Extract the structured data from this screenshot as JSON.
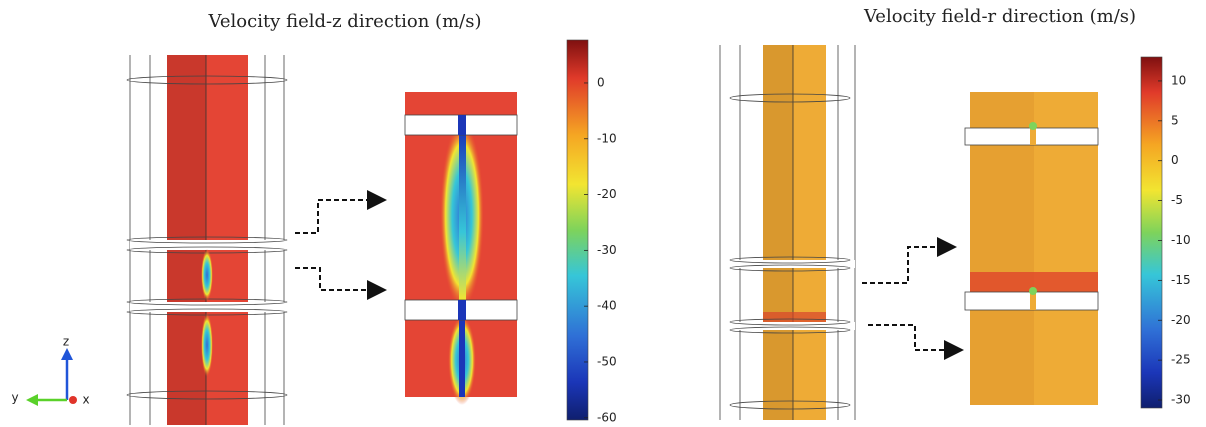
{
  "panels": [
    {
      "title": "Velocity field-z direction (m/s)",
      "colorbar": {
        "lim": [
          -60.4,
          7.7
        ],
        "ticks": [
          0,
          -10,
          -20,
          -30,
          -40,
          -50,
          -60
        ]
      }
    },
    {
      "title": "Velocity field-r direction (m/s)",
      "colorbar": {
        "lim": [
          -31,
          13
        ],
        "ticks": [
          10,
          5,
          0,
          -5,
          -10,
          -15,
          -20,
          -25,
          -30
        ]
      }
    }
  ],
  "triad": {
    "z": "z",
    "y": "y",
    "x": "x"
  }
}
